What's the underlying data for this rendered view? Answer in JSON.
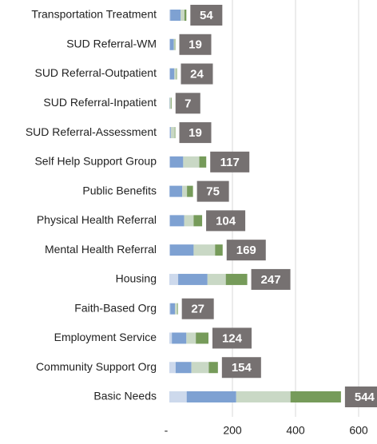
{
  "chart_data": {
    "type": "stacked_bar_horizontal",
    "categories": [
      "Transportation Treatment",
      "SUD Referral-WM",
      "SUD Referral-Outpatient",
      "SUD Referral-Inpatient",
      "SUD Referral-Assessment",
      "Self Help Support Group",
      "Public Benefits",
      "Physical Health Referral",
      "Mental Health Referral",
      "Housing",
      "Faith-Based Org",
      "Employment Service",
      "Community Support Org",
      "Basic Needs"
    ],
    "series": [
      {
        "color": "#cdd9ec",
        "values": [
          3,
          2,
          2,
          0,
          3,
          2,
          1,
          2,
          2,
          28,
          3,
          8,
          20,
          55
        ]
      },
      {
        "color": "#7ea1d2",
        "values": [
          33,
          12,
          14,
          1,
          2,
          42,
          40,
          45,
          75,
          93,
          15,
          46,
          50,
          157
        ]
      },
      {
        "color": "#c9d8c5",
        "values": [
          12,
          3,
          6,
          4,
          12,
          51,
          15,
          30,
          68,
          58,
          7,
          30,
          55,
          172
        ]
      },
      {
        "color": "#769b5a",
        "values": [
          6,
          2,
          2,
          2,
          2,
          22,
          19,
          27,
          24,
          68,
          2,
          40,
          29,
          160
        ]
      }
    ],
    "totals": [
      54,
      19,
      24,
      7,
      19,
      117,
      75,
      104,
      169,
      247,
      27,
      124,
      154,
      544
    ],
    "total_color": "#767171",
    "xlim": [
      0,
      650
    ],
    "xticks": [
      {
        "value": 0,
        "label": "-"
      },
      200,
      400,
      600
    ],
    "grid": true
  }
}
